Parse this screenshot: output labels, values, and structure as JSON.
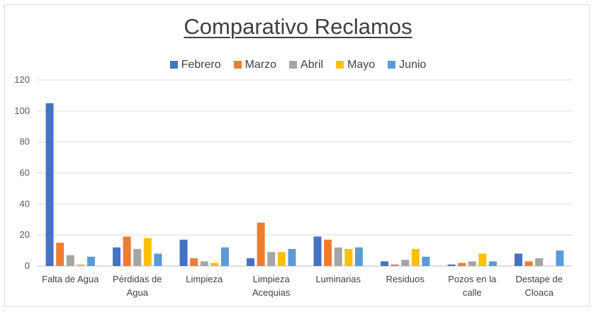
{
  "chart_data": {
    "type": "bar",
    "title": "Comparativo Reclamos",
    "xlabel": "",
    "ylabel": "",
    "ylim": [
      0,
      120
    ],
    "yticks": [
      "0",
      "20",
      "40",
      "60",
      "80",
      "100",
      "120"
    ],
    "grid": true,
    "legend_position": "top",
    "categories": [
      [
        "Falta de Agua"
      ],
      [
        "Pérdidas de",
        "Agua"
      ],
      [
        "Limpieza"
      ],
      [
        "Limpieza",
        "Acequias"
      ],
      [
        "Luminarias"
      ],
      [
        "Residuos"
      ],
      [
        "Pozos en la",
        "calle"
      ],
      [
        "Destape de",
        "Cloaca"
      ]
    ],
    "series": [
      {
        "name": "Febrero",
        "color": "#4472c4",
        "values": [
          105,
          12,
          17,
          5,
          19,
          3,
          1,
          8
        ]
      },
      {
        "name": "Marzo",
        "color": "#ed7d31",
        "values": [
          15,
          19,
          5,
          28,
          17,
          1,
          2,
          3
        ]
      },
      {
        "name": "Abril",
        "color": "#a5a5a5",
        "values": [
          7,
          11,
          3,
          9,
          12,
          4,
          3,
          5
        ]
      },
      {
        "name": "Mayo",
        "color": "#ffc000",
        "values": [
          1,
          18,
          2,
          9,
          11,
          11,
          8,
          0
        ]
      },
      {
        "name": "Junio",
        "color": "#5b9bd5",
        "values": [
          6,
          8,
          12,
          11,
          12,
          6,
          3,
          10
        ]
      }
    ]
  }
}
